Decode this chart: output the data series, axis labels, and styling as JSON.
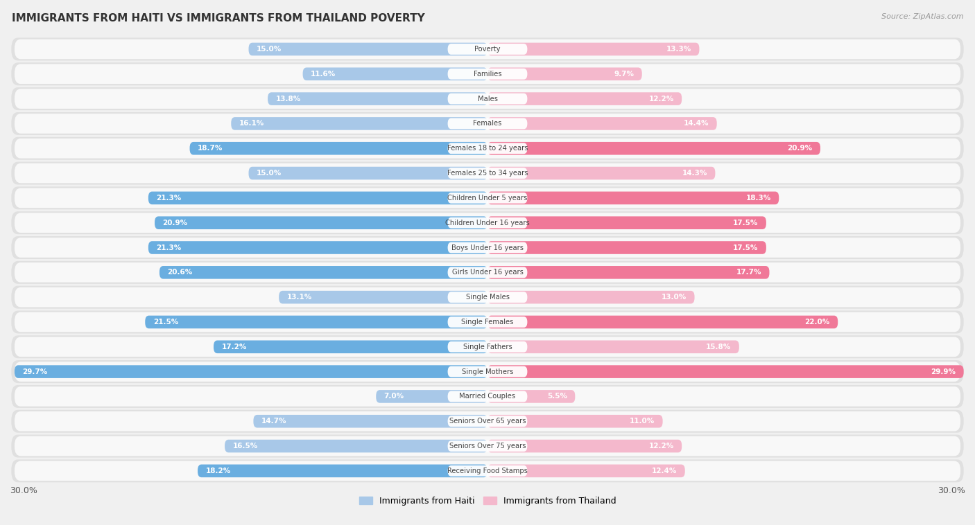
{
  "title": "IMMIGRANTS FROM HAITI VS IMMIGRANTS FROM THAILAND POVERTY",
  "source": "Source: ZipAtlas.com",
  "categories": [
    "Poverty",
    "Families",
    "Males",
    "Females",
    "Females 18 to 24 years",
    "Females 25 to 34 years",
    "Children Under 5 years",
    "Children Under 16 years",
    "Boys Under 16 years",
    "Girls Under 16 years",
    "Single Males",
    "Single Females",
    "Single Fathers",
    "Single Mothers",
    "Married Couples",
    "Seniors Over 65 years",
    "Seniors Over 75 years",
    "Receiving Food Stamps"
  ],
  "haiti_values": [
    15.0,
    11.6,
    13.8,
    16.1,
    18.7,
    15.0,
    21.3,
    20.9,
    21.3,
    20.6,
    13.1,
    21.5,
    17.2,
    29.7,
    7.0,
    14.7,
    16.5,
    18.2
  ],
  "thailand_values": [
    13.3,
    9.7,
    12.2,
    14.4,
    20.9,
    14.3,
    18.3,
    17.5,
    17.5,
    17.7,
    13.0,
    22.0,
    15.8,
    29.9,
    5.5,
    11.0,
    12.2,
    12.4
  ],
  "haiti_color_normal": "#a8c8e8",
  "thailand_color_normal": "#f4b8cc",
  "haiti_color_highlight": "#6aaee0",
  "thailand_color_highlight": "#f07898",
  "highlight_threshold": 17.0,
  "background_color": "#f0f0f0",
  "row_bg_color": "#e8e8e8",
  "row_inner_color": "#fafafa",
  "max_value": 30.0,
  "legend_haiti": "Immigrants from Haiti",
  "legend_thailand": "Immigrants from Thailand"
}
